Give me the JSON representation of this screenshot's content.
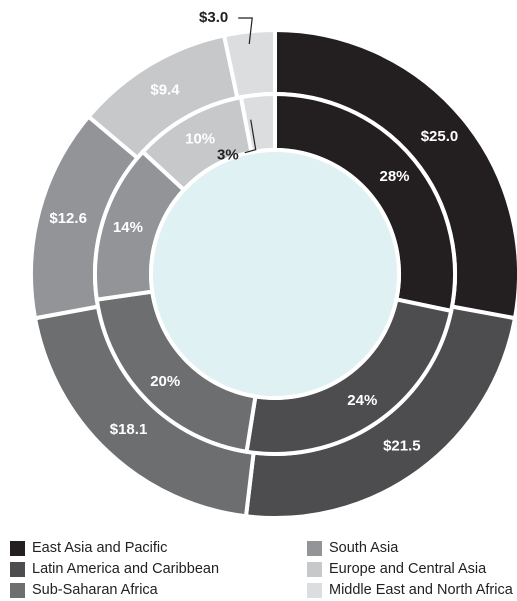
{
  "chart_data": {
    "type": "pie",
    "subtype": "double-ring donut",
    "categories": [
      "East Asia and Pacific",
      "Latin America and Caribbean",
      "Sub-Saharan Africa",
      "South Asia",
      "Europe and Central Asia",
      "Middle East and North Africa"
    ],
    "series": [
      {
        "ring": "outer",
        "values": [
          25.0,
          21.5,
          18.1,
          12.6,
          9.4,
          3.0
        ],
        "labels": [
          "$25.0",
          "$21.5",
          "$18.1",
          "$12.6",
          "$9.4",
          "$3.0"
        ]
      },
      {
        "ring": "inner",
        "values": [
          28,
          24,
          20,
          14,
          10,
          3
        ],
        "labels": [
          "28%",
          "24%",
          "20%",
          "14%",
          "10%",
          "3%"
        ]
      }
    ],
    "colors": [
      "#231f20",
      "#4d4d4f",
      "#6d6e70",
      "#929497",
      "#c7c8ca",
      "#dcdddf"
    ],
    "center_color": "#dff1f2",
    "legend": {
      "position": "bottom",
      "columns": 2
    }
  }
}
